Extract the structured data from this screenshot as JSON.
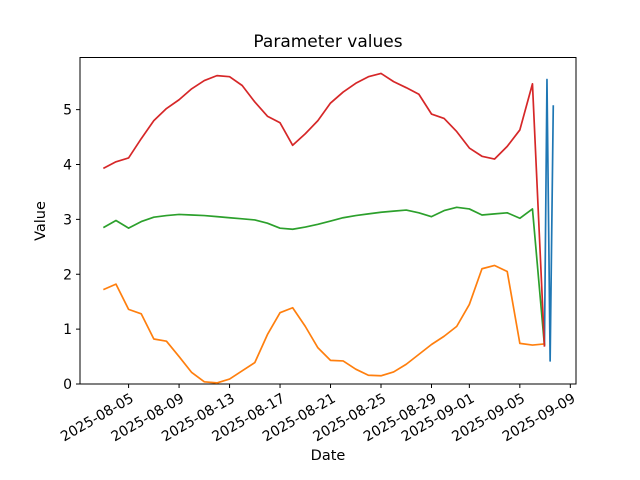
{
  "window": {
    "title": "Parameter values"
  },
  "chart_data": {
    "type": "line",
    "title": "Parameter values",
    "xlabel": "Date",
    "ylabel": "Value",
    "grid": false,
    "legend": "none",
    "x_unit": "days since 2025-08-03",
    "xlim_days": [
      -1.85,
      37.45
    ],
    "ylim": [
      0,
      5.95
    ],
    "y_ticks": [
      0,
      1,
      2,
      3,
      4,
      5
    ],
    "x_ticks": [
      {
        "day": 2,
        "label": "2025-08-05"
      },
      {
        "day": 6,
        "label": "2025-08-09"
      },
      {
        "day": 10,
        "label": "2025-08-13"
      },
      {
        "day": 14,
        "label": "2025-08-17"
      },
      {
        "day": 18,
        "label": "2025-08-21"
      },
      {
        "day": 22,
        "label": "2025-08-25"
      },
      {
        "day": 26,
        "label": "2025-08-29"
      },
      {
        "day": 29,
        "label": "2025-09-01"
      },
      {
        "day": 33,
        "label": "2025-09-05"
      },
      {
        "day": 37,
        "label": "2025-09-09"
      }
    ],
    "x_tick_rotation_deg": 30,
    "series": [
      {
        "name": "blue",
        "color": "#1f77b4",
        "x": [
          34.95,
          35.15,
          35.4,
          35.65
        ],
        "values": [
          0.7,
          5.55,
          0.42,
          5.08
        ]
      },
      {
        "name": "orange",
        "color": "#ff7f0e",
        "x": [
          0,
          1,
          2,
          3,
          4,
          5,
          6,
          7,
          8,
          9,
          10,
          11,
          12,
          13,
          14,
          15,
          16,
          17,
          18,
          19,
          20,
          21,
          22,
          23,
          24,
          25,
          26,
          27,
          28,
          29,
          30,
          31,
          32,
          33,
          34,
          34.95
        ],
        "values": [
          1.72,
          1.82,
          1.36,
          1.28,
          0.82,
          0.78,
          0.5,
          0.21,
          0.04,
          0.02,
          0.09,
          0.24,
          0.39,
          0.9,
          1.3,
          1.39,
          1.05,
          0.66,
          0.43,
          0.42,
          0.27,
          0.16,
          0.15,
          0.22,
          0.36,
          0.54,
          0.72,
          0.87,
          1.05,
          1.45,
          2.1,
          2.16,
          2.05,
          0.74,
          0.71,
          0.73
        ]
      },
      {
        "name": "green",
        "color": "#2ca02c",
        "x": [
          0,
          1,
          2,
          3,
          4,
          5,
          6,
          7,
          8,
          9,
          10,
          11,
          12,
          13,
          14,
          15,
          16,
          17,
          18,
          19,
          20,
          21,
          22,
          23,
          24,
          25,
          26,
          27,
          28,
          29,
          30,
          31,
          32,
          33,
          34,
          34.95
        ],
        "values": [
          2.85,
          2.98,
          2.84,
          2.96,
          3.04,
          3.07,
          3.09,
          3.08,
          3.07,
          3.05,
          3.03,
          3.01,
          2.99,
          2.93,
          2.84,
          2.82,
          2.86,
          2.91,
          2.97,
          3.03,
          3.07,
          3.1,
          3.13,
          3.15,
          3.17,
          3.12,
          3.05,
          3.16,
          3.22,
          3.19,
          3.08,
          3.1,
          3.12,
          3.02,
          3.19,
          0.7
        ]
      },
      {
        "name": "red",
        "color": "#d62728",
        "x": [
          0,
          1,
          2,
          3,
          4,
          5,
          6,
          7,
          8,
          9,
          10,
          11,
          12,
          13,
          14,
          15,
          16,
          17,
          18,
          19,
          20,
          21,
          22,
          23,
          24,
          25,
          26,
          27,
          28,
          29,
          30,
          31,
          32,
          33,
          34,
          34.95
        ],
        "values": [
          3.93,
          4.05,
          4.12,
          4.47,
          4.8,
          5.02,
          5.18,
          5.38,
          5.53,
          5.62,
          5.6,
          5.44,
          5.14,
          4.88,
          4.76,
          4.35,
          4.56,
          4.8,
          5.12,
          5.32,
          5.48,
          5.6,
          5.66,
          5.51,
          5.4,
          5.28,
          4.92,
          4.84,
          4.6,
          4.3,
          4.15,
          4.1,
          4.33,
          4.63,
          5.47,
          0.68
        ]
      }
    ]
  }
}
